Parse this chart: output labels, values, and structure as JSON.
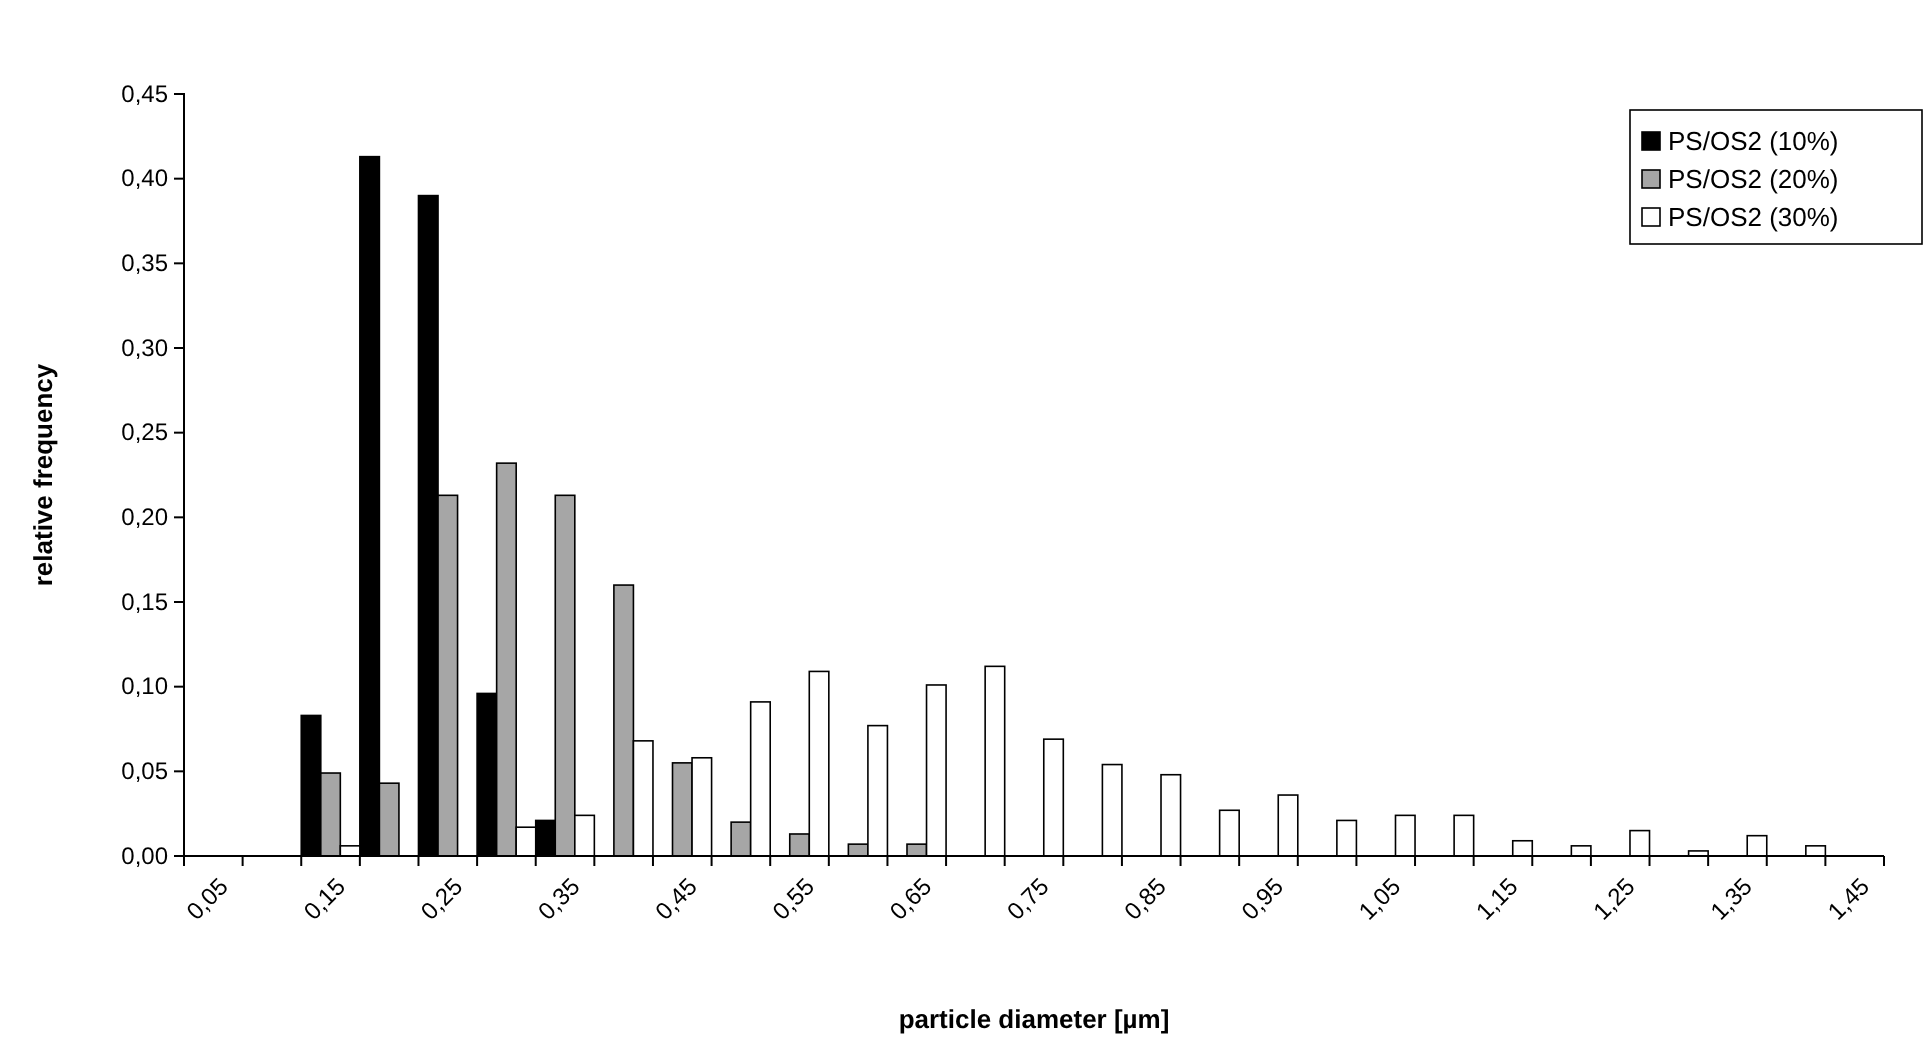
{
  "chart_data": {
    "type": "bar",
    "xlabel": "particle diameter [µm]",
    "ylabel": "relative frequency",
    "categories": [
      "0,05",
      null,
      "0,15",
      null,
      "0,25",
      null,
      "0,35",
      null,
      "0,45",
      null,
      "0,55",
      null,
      "0,65",
      null,
      "0,75",
      null,
      "0,85",
      null,
      "0,95",
      null,
      "1,05",
      null,
      "1,15",
      null,
      "1,25",
      null,
      "1,35",
      null,
      "1,45"
    ],
    "series": [
      {
        "name": "PS/OS2 (10%)",
        "color": "#000000",
        "values": [
          null,
          null,
          0.083,
          0.413,
          0.39,
          0.096,
          0.021,
          null,
          null,
          null,
          null,
          null,
          null,
          null,
          null,
          null,
          null,
          null,
          null,
          null,
          null,
          null,
          null,
          null,
          null,
          null,
          null,
          null,
          null
        ]
      },
      {
        "name": "PS/OS2 (20%)",
        "color": "#a6a6a6",
        "values": [
          null,
          null,
          0.049,
          0.043,
          0.213,
          0.232,
          0.213,
          0.16,
          0.055,
          0.02,
          0.013,
          0.007,
          0.007,
          null,
          null,
          null,
          null,
          null,
          null,
          null,
          null,
          null,
          null,
          null,
          null,
          null,
          null,
          null,
          null
        ]
      },
      {
        "name": "PS/OS2 (30%)",
        "color": "#ffffff",
        "values": [
          null,
          null,
          0.006,
          null,
          null,
          0.017,
          0.024,
          0.068,
          0.058,
          0.091,
          0.109,
          0.077,
          0.101,
          0.112,
          0.069,
          0.054,
          0.048,
          0.027,
          0.036,
          0.021,
          0.024,
          0.024,
          0.009,
          0.006,
          0.015,
          0.003,
          0.012,
          0.006,
          null
        ]
      }
    ],
    "ylim": [
      0,
      0.45
    ],
    "yticks": [
      {
        "value": 0,
        "label": "0,00"
      },
      {
        "value": 0.05,
        "label": "0,05"
      },
      {
        "value": 0.1,
        "label": "0,10"
      },
      {
        "value": 0.15,
        "label": "0,15"
      },
      {
        "value": 0.2,
        "label": "0,20"
      },
      {
        "value": 0.25,
        "label": "0,25"
      },
      {
        "value": 0.3,
        "label": "0,30"
      },
      {
        "value": 0.35,
        "label": "0,35"
      },
      {
        "value": 0.4,
        "label": "0,40"
      },
      {
        "value": 0.45,
        "label": "0,45"
      }
    ],
    "grid": false,
    "legend": "top right"
  }
}
